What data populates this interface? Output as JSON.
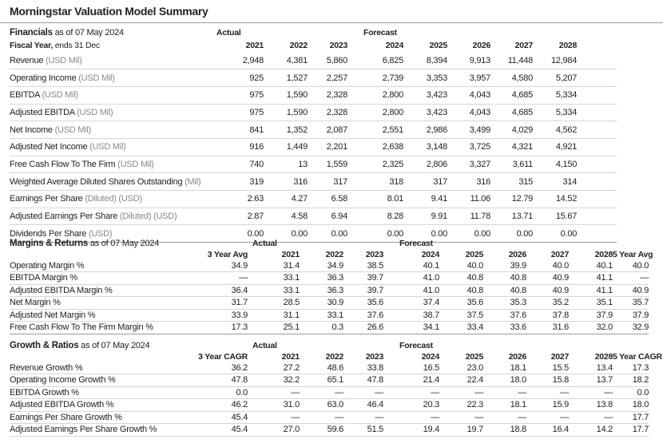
{
  "title": "Morningstar Valuation Model Summary",
  "financials": {
    "title": "Financials",
    "asof": "as of 07 May 2024",
    "group_actual": "Actual",
    "group_forecast": "Forecast",
    "fy_label": "Fiscal Year,",
    "fy_sub": "ends 31 Dec",
    "years": [
      "2021",
      "2022",
      "2023",
      "2024",
      "2025",
      "2026",
      "2027",
      "2028"
    ],
    "rows": [
      {
        "label": "Revenue",
        "unit": "(USD Mil)",
        "values": [
          "2,948",
          "4,381",
          "5,860",
          "6,825",
          "8,394",
          "9,913",
          "11,448",
          "12,984"
        ]
      },
      {
        "label": "Operating Income",
        "unit": "(USD Mil)",
        "values": [
          "925",
          "1,527",
          "2,257",
          "2,739",
          "3,353",
          "3,957",
          "4,580",
          "5,207"
        ]
      },
      {
        "label": "EBITDA",
        "unit": "(USD Mil)",
        "values": [
          "975",
          "1,590",
          "2,328",
          "2,800",
          "3,423",
          "4,043",
          "4,685",
          "5,334"
        ]
      },
      {
        "label": "Adjusted EBITDA",
        "unit": "(USD Mil)",
        "values": [
          "975",
          "1,590",
          "2,328",
          "2,800",
          "3,423",
          "4,043",
          "4,685",
          "5,334"
        ]
      },
      {
        "label": "Net Income",
        "unit": "(USD Mil)",
        "values": [
          "841",
          "1,352",
          "2,087",
          "2,551",
          "2,986",
          "3,499",
          "4,029",
          "4,562"
        ]
      },
      {
        "label": "Adjusted Net Income",
        "unit": "(USD Mil)",
        "values": [
          "916",
          "1,449",
          "2,201",
          "2,638",
          "3,148",
          "3,725",
          "4,321",
          "4,921"
        ]
      },
      {
        "label": "Free Cash Flow To The Firm",
        "unit": "(USD Mil)",
        "values": [
          "740",
          "13",
          "1,559",
          "2,325",
          "2,806",
          "3,327",
          "3,611",
          "4,150"
        ]
      },
      {
        "label": "Weighted Average Diluted Shares Outstanding",
        "unit": "(Mil)",
        "values": [
          "319",
          "316",
          "317",
          "318",
          "317",
          "316",
          "315",
          "314"
        ]
      },
      {
        "label": "Earnings Per Share",
        "unit": "(Diluted) (USD)",
        "values": [
          "2.63",
          "4.27",
          "6.58",
          "8.01",
          "9.41",
          "11.06",
          "12.79",
          "14.52"
        ]
      },
      {
        "label": "Adjusted Earnings Per Share",
        "unit": "(Diluted) (USD)",
        "values": [
          "2.87",
          "4.58",
          "6.94",
          "8.28",
          "9.91",
          "11.78",
          "13.71",
          "15.67"
        ]
      },
      {
        "label": "Dividends Per Share",
        "unit": "(USD)",
        "values": [
          "0.00",
          "0.00",
          "0.00",
          "0.00",
          "0.00",
          "0.00",
          "0.00",
          "0.00"
        ]
      }
    ]
  },
  "margins": {
    "title": "Margins & Returns",
    "asof": "as of 07 May 2024",
    "group_actual": "Actual",
    "group_forecast": "Forecast",
    "left_col": "3 Year Avg",
    "right_col": "5 Year Avg",
    "years": [
      "2021",
      "2022",
      "2023",
      "2024",
      "2025",
      "2026",
      "2027",
      "2028"
    ],
    "rows": [
      {
        "label": "Operating Margin %",
        "left": "34.9",
        "values": [
          "31.4",
          "34.9",
          "38.5",
          "40.1",
          "40.0",
          "39.9",
          "40.0",
          "40.1"
        ],
        "right": "40.0"
      },
      {
        "label": "EBITDA Margin %",
        "left": "—",
        "values": [
          "33.1",
          "36.3",
          "39.7",
          "41.0",
          "40.8",
          "40.8",
          "40.9",
          "41.1"
        ],
        "right": "—"
      },
      {
        "label": "Adjusted EBITDA Margin %",
        "left": "36.4",
        "values": [
          "33.1",
          "36.3",
          "39.7",
          "41.0",
          "40.8",
          "40.8",
          "40.9",
          "41.1"
        ],
        "right": "40.9"
      },
      {
        "label": "Net Margin %",
        "left": "31.7",
        "values": [
          "28.5",
          "30.9",
          "35.6",
          "37.4",
          "35.6",
          "35.3",
          "35.2",
          "35.1"
        ],
        "right": "35.7"
      },
      {
        "label": "Adjusted Net Margin %",
        "left": "33.9",
        "values": [
          "31.1",
          "33.1",
          "37.6",
          "38.7",
          "37.5",
          "37.6",
          "37.8",
          "37.9"
        ],
        "right": "37.9"
      },
      {
        "label": "Free Cash Flow To The Firm Margin %",
        "left": "17.3",
        "values": [
          "25.1",
          "0.3",
          "26.6",
          "34.1",
          "33.4",
          "33.6",
          "31.6",
          "32.0"
        ],
        "right": "32.9"
      }
    ]
  },
  "growth": {
    "title": "Growth & Ratios",
    "asof": "as of 07 May 2024",
    "group_actual": "Actual",
    "group_forecast": "Forecast",
    "left_col": "3 Year CAGR",
    "right_col": "5 Year CAGR",
    "years": [
      "2021",
      "2022",
      "2023",
      "2024",
      "2025",
      "2026",
      "2027",
      "2028"
    ],
    "rows": [
      {
        "label": "Revenue Growth %",
        "left": "36.2",
        "values": [
          "27.2",
          "48.6",
          "33.8",
          "16.5",
          "23.0",
          "18.1",
          "15.5",
          "13.4"
        ],
        "right": "17.3"
      },
      {
        "label": "Operating Income Growth %",
        "left": "47.8",
        "values": [
          "32.2",
          "65.1",
          "47.8",
          "21.4",
          "22.4",
          "18.0",
          "15.8",
          "13.7"
        ],
        "right": "18.2"
      },
      {
        "label": "EBITDA Growth %",
        "left": "0.0",
        "values": [
          "—",
          "—",
          "—",
          "—",
          "—",
          "—",
          "—",
          "—"
        ],
        "right": "0.0"
      },
      {
        "label": "Adjusted EBITDA Growth %",
        "left": "46.2",
        "values": [
          "31.0",
          "63.0",
          "46.4",
          "20.3",
          "22.3",
          "18.1",
          "15.9",
          "13.8"
        ],
        "right": "18.0"
      },
      {
        "label": "Earnings Per Share Growth %",
        "left": "45.4",
        "values": [
          "—",
          "—",
          "—",
          "—",
          "—",
          "—",
          "—",
          "—"
        ],
        "right": "17.7"
      },
      {
        "label": "Adjusted Earnings Per Share Growth %",
        "left": "45.4",
        "values": [
          "27.0",
          "59.6",
          "51.5",
          "19.4",
          "19.7",
          "18.8",
          "16.4",
          "14.2"
        ],
        "right": "17.7"
      }
    ]
  }
}
